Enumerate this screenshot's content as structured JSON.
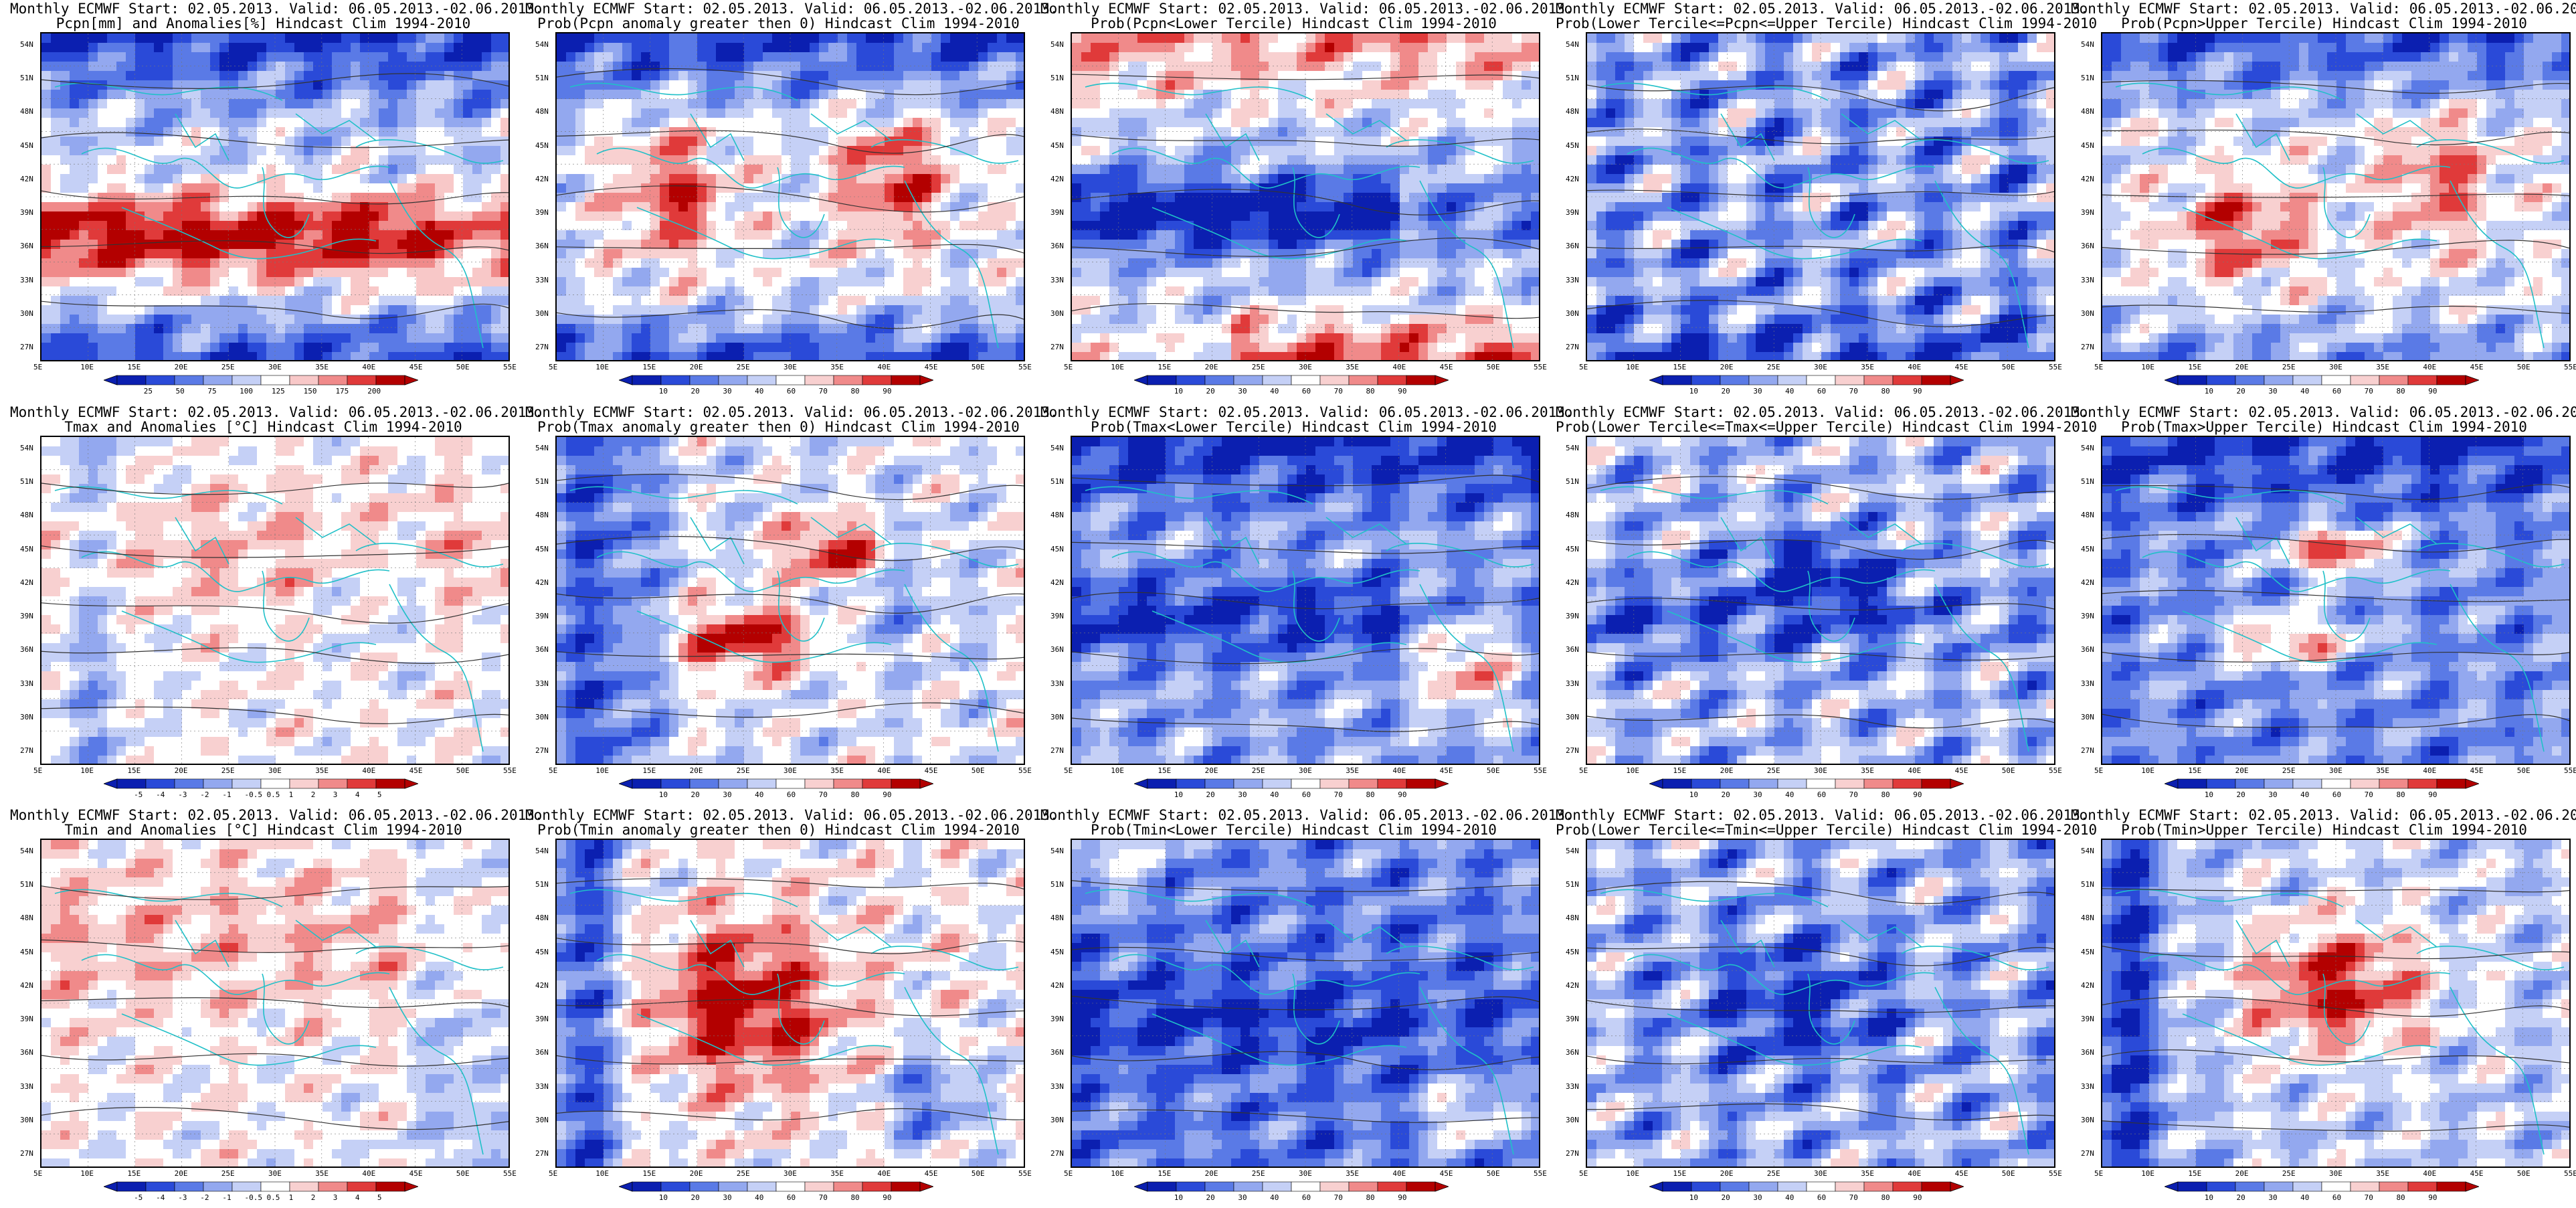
{
  "figure": {
    "header": "Monthly ECMWF Start: 02.05.2013. Valid: 06.05.2013.-02.06.2013.",
    "lat_labels": [
      "54N",
      "51N",
      "48N",
      "45N",
      "42N",
      "39N",
      "36N",
      "33N",
      "30N",
      "27N"
    ],
    "lon_labels": [
      "5E",
      "10E",
      "15E",
      "20E",
      "25E",
      "30E",
      "35E",
      "40E",
      "45E",
      "50E",
      "55E"
    ]
  },
  "palettes": {
    "precip": [
      "#0b1fb0",
      "#2a4ad8",
      "#5a7ae6",
      "#93a8ef",
      "#c5d0f6",
      "#ffffff",
      "#f8c8c8",
      "#f08a8a",
      "#e03a3a",
      "#b30000"
    ],
    "anom": [
      "#0b1fb0",
      "#2a4ad8",
      "#5a7ae6",
      "#93a8ef",
      "#c5d0f6",
      "#ffffff",
      "#f8d0d0",
      "#f08a8a",
      "#e03a3a",
      "#b30000"
    ],
    "prob": [
      "#0b1fb0",
      "#2a4ad8",
      "#5a7ae6",
      "#93a8ef",
      "#c5d0f6",
      "#ffffff",
      "#f8d0d0",
      "#f08a8a",
      "#e03a3a",
      "#b30000"
    ]
  },
  "colorbars": {
    "precip": [
      "25",
      "50",
      "75",
      "100",
      "125",
      "150",
      "175",
      "200"
    ],
    "temp_anom": [
      "-5",
      "-4",
      "-3",
      "-2",
      "-1",
      "-0.5",
      "0.5",
      "1",
      "2",
      "3",
      "4",
      "5"
    ],
    "prob": [
      "10",
      "20",
      "30",
      "40",
      "60",
      "70",
      "80",
      "90"
    ]
  },
  "panels": [
    {
      "id": "r1c1",
      "subtitle": "Pcpn[mm] and Anomalies[%] Hindcast Clim 1994-2010",
      "scale": "precip",
      "pattern": "pcpn_anom"
    },
    {
      "id": "r1c2",
      "subtitle": "Prob(Pcpn anomaly greater then 0) Hindcast Clim 1994-2010",
      "scale": "prob",
      "pattern": "pcpn_gt0"
    },
    {
      "id": "r1c3",
      "subtitle": "Prob(Pcpn<Lower Tercile) Hindcast Clim 1994-2010",
      "scale": "prob",
      "pattern": "pcpn_lower"
    },
    {
      "id": "r1c4",
      "subtitle": "Prob(Lower Tercile<=Pcpn<=Upper Tercile) Hindcast Clim 1994-2010",
      "scale": "prob",
      "pattern": "pcpn_mid"
    },
    {
      "id": "r1c5",
      "subtitle": "Prob(Pcpn>Upper Tercile) Hindcast Clim 1994-2010",
      "scale": "prob",
      "pattern": "pcpn_upper"
    },
    {
      "id": "r2c1",
      "subtitle": "Tmax and Anomalies [°C] Hindcast Clim 1994-2010",
      "scale": "temp_anom",
      "pattern": "tmax_anom"
    },
    {
      "id": "r2c2",
      "subtitle": "Prob(Tmax anomaly greater then 0) Hindcast Clim 1994-2010",
      "scale": "prob",
      "pattern": "tmax_gt0"
    },
    {
      "id": "r2c3",
      "subtitle": "Prob(Tmax<Lower Tercile) Hindcast Clim 1994-2010",
      "scale": "prob",
      "pattern": "tmax_lower"
    },
    {
      "id": "r2c4",
      "subtitle": "Prob(Lower Tercile<=Tmax<=Upper Tercile) Hindcast Clim 1994-2010",
      "scale": "prob",
      "pattern": "tmax_mid"
    },
    {
      "id": "r2c5",
      "subtitle": "Prob(Tmax>Upper Tercile) Hindcast Clim 1994-2010",
      "scale": "prob",
      "pattern": "tmax_upper"
    },
    {
      "id": "r3c1",
      "subtitle": "Tmin and Anomalies [°C] Hindcast Clim 1994-2010",
      "scale": "temp_anom",
      "pattern": "tmin_anom"
    },
    {
      "id": "r3c2",
      "subtitle": "Prob(Tmin anomaly greater then 0) Hindcast Clim 1994-2010",
      "scale": "prob",
      "pattern": "tmin_gt0"
    },
    {
      "id": "r3c3",
      "subtitle": "Prob(Tmin<Lower Tercile) Hindcast Clim 1994-2010",
      "scale": "prob",
      "pattern": "tmin_lower"
    },
    {
      "id": "r3c4",
      "subtitle": "Prob(Lower Tercile<=Tmin<=Upper Tercile) Hindcast Clim 1994-2010",
      "scale": "prob",
      "pattern": "tmin_mid"
    },
    {
      "id": "r3c5",
      "subtitle": "Prob(Tmin>Upper Tercile) Hindcast Clim 1994-2010",
      "scale": "prob",
      "pattern": "tmin_upper"
    }
  ]
}
